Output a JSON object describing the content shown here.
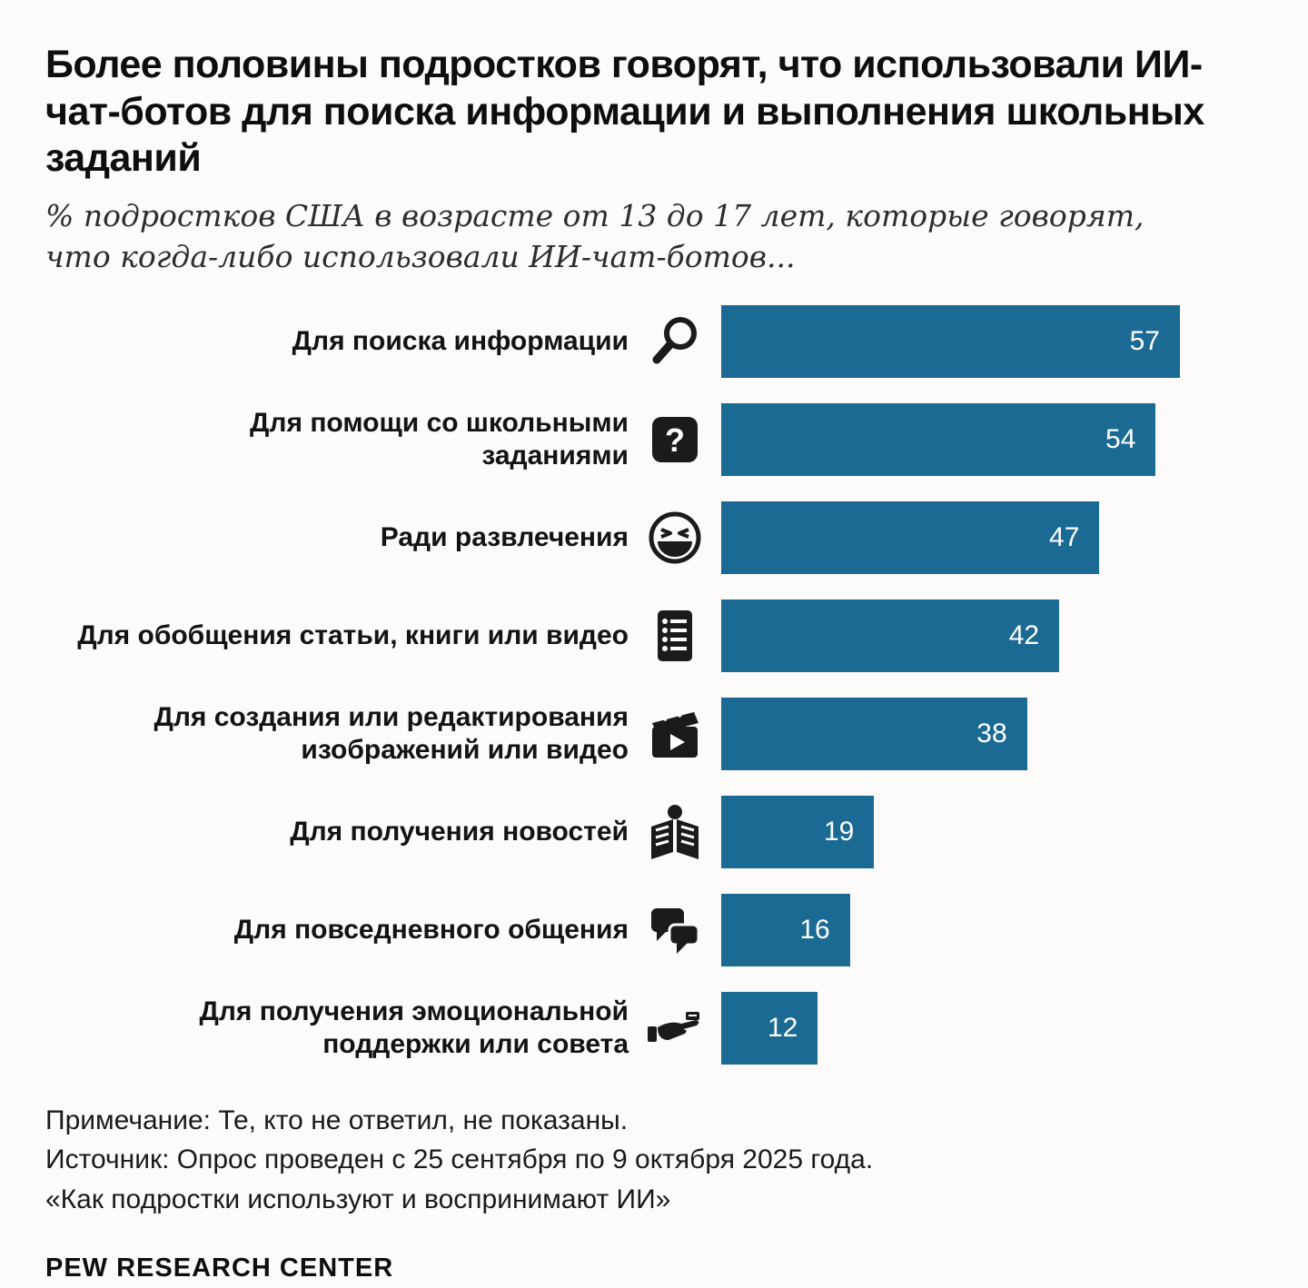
{
  "chart_data": {
    "type": "bar",
    "orientation": "horizontal",
    "bar_color": "#1b6a93",
    "max_value": 57,
    "xlim": [
      0,
      57
    ],
    "title": "Более половины подростков говорят, что использовали ИИ-чат-ботов для поиска информации и выполнения школьных заданий",
    "subtitle": "% подростков США в возрасте от 13 до 17 лет, которые говорят,\nчто когда-либо использовали ИИ-чат-ботов...",
    "categories": [
      "Для поиска информации",
      "Для помощи со школьными заданиями",
      "Ради развлечения",
      "Для обобщения статьи, книги или видео",
      "Для создания или редактирования изображений или видео",
      "Для получения новостей",
      "Для повседневного общения",
      "Для получения эмоциональной поддержки или совета"
    ],
    "values": [
      57,
      54,
      47,
      42,
      38,
      19,
      16,
      12
    ],
    "items": [
      {
        "label": "Для поиска информации",
        "icon": "magnifier-icon",
        "value": 57
      },
      {
        "label": "Для помощи со школьными\nзаданиями",
        "icon": "question-box-icon",
        "icon_glyph": "?",
        "value": 54
      },
      {
        "label": "Ради развлечения",
        "icon": "laughing-face-icon",
        "value": 47
      },
      {
        "label": "Для обобщения статьи, книги или видео",
        "icon": "list-document-icon",
        "value": 42
      },
      {
        "label": "Для создания или редактирования\nизображений или видео",
        "icon": "clapperboard-icon",
        "value": 38
      },
      {
        "label": "Для получения новостей",
        "icon": "newspaper-reader-icon",
        "value": 19
      },
      {
        "label": "Для повседневного общения",
        "icon": "chat-bubbles-icon",
        "value": 16
      },
      {
        "label": "Для получения эмоциональной\nподдержки или совета",
        "icon": "giving-hand-icon",
        "value": 12
      }
    ]
  },
  "footer": {
    "note": "Примечание: Те, кто не ответил, не показаны.",
    "source": "Источник: Опрос проведен с 25 сентября по 9 октября 2025 года.",
    "survey": "«Как подростки используют и воспринимают ИИ»",
    "brand": "PEW RESEARCH CENTER"
  }
}
